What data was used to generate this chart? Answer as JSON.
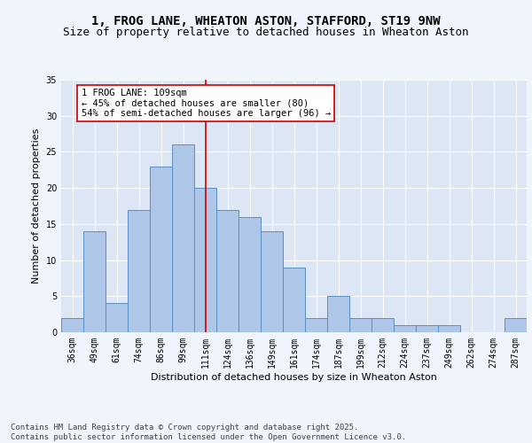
{
  "title_line1": "1, FROG LANE, WHEATON ASTON, STAFFORD, ST19 9NW",
  "title_line2": "Size of property relative to detached houses in Wheaton Aston",
  "xlabel": "Distribution of detached houses by size in Wheaton Aston",
  "ylabel": "Number of detached properties",
  "bar_labels": [
    "36sqm",
    "49sqm",
    "61sqm",
    "74sqm",
    "86sqm",
    "99sqm",
    "111sqm",
    "124sqm",
    "136sqm",
    "149sqm",
    "161sqm",
    "174sqm",
    "187sqm",
    "199sqm",
    "212sqm",
    "224sqm",
    "237sqm",
    "249sqm",
    "262sqm",
    "274sqm",
    "287sqm"
  ],
  "bar_values": [
    2,
    14,
    4,
    17,
    23,
    26,
    20,
    17,
    16,
    14,
    9,
    2,
    5,
    2,
    2,
    1,
    1,
    1,
    0,
    0,
    2
  ],
  "bar_color": "#aec6e8",
  "bar_edge_color": "#5a8fc2",
  "background_color": "#dce6f5",
  "grid_color": "#ffffff",
  "fig_background": "#f0f4fc",
  "vline_x": 6,
  "vline_color": "#cc0000",
  "annotation_text": "1 FROG LANE: 109sqm\n← 45% of detached houses are smaller (80)\n54% of semi-detached houses are larger (96) →",
  "annotation_box_color": "#ffffff",
  "annotation_box_edge": "#cc0000",
  "ylim": [
    0,
    35
  ],
  "yticks": [
    0,
    5,
    10,
    15,
    20,
    25,
    30,
    35
  ],
  "footer_text": "Contains HM Land Registry data © Crown copyright and database right 2025.\nContains public sector information licensed under the Open Government Licence v3.0.",
  "title_fontsize": 10,
  "subtitle_fontsize": 9,
  "axis_label_fontsize": 8,
  "tick_fontsize": 7,
  "annotation_fontsize": 7.5,
  "footer_fontsize": 6.5
}
